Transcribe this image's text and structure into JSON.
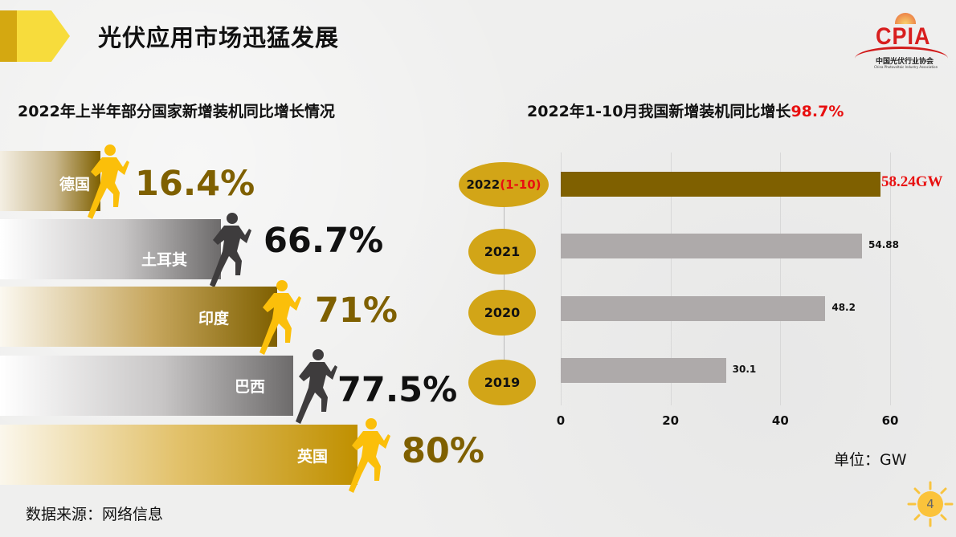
{
  "header": {
    "title": "光伏应用市场迅猛发展",
    "accent_dark": "#d4a811",
    "accent_light": "#f7dc3c"
  },
  "logo": {
    "text": "CPIA",
    "cn_name": "中国光伏行业协会",
    "en_name": "China Photovoltaic Industry Association"
  },
  "left_panel": {
    "title": "2022年上半年部分国家新增装机同比增长情况",
    "items": [
      {
        "country": "德国",
        "growth": "16.4%",
        "style": "gold"
      },
      {
        "country": "土耳其",
        "growth": "66.7%",
        "style": "gray"
      },
      {
        "country": "印度",
        "growth": "71%",
        "style": "gold"
      },
      {
        "country": "巴西",
        "growth": "77.5%",
        "style": "gray"
      },
      {
        "country": "英国",
        "growth": "80%",
        "style": "gold"
      }
    ],
    "source": "数据来源：网络信息"
  },
  "right_panel": {
    "title_prefix": "2022年1-10月我国新增装机同比增长",
    "title_highlight": "98.7%",
    "categories": [
      {
        "year": "2022",
        "suffix": "(1-10)",
        "value_label": "58.24GW"
      },
      {
        "year": "2021",
        "suffix": "",
        "value_label": "54.88"
      },
      {
        "year": "2020",
        "suffix": "",
        "value_label": "48.2"
      },
      {
        "year": "2019",
        "suffix": "",
        "value_label": "30.1"
      }
    ],
    "x_ticks": [
      "0",
      "20",
      "40",
      "60"
    ],
    "unit": "单位：GW"
  },
  "page_number": "4",
  "chart_data": [
    {
      "type": "bar",
      "orientation": "horizontal",
      "title": "2022年上半年部分国家新增装机同比增长情况",
      "categories": [
        "德国",
        "土耳其",
        "印度",
        "巴西",
        "英国"
      ],
      "values": [
        16.4,
        66.7,
        71,
        77.5,
        80
      ],
      "unit": "%",
      "xlabel": "",
      "ylabel": ""
    },
    {
      "type": "bar",
      "orientation": "horizontal",
      "title": "2022年1-10月我国新增装机同比增长98.7%",
      "categories": [
        "2022(1-10)",
        "2021",
        "2020",
        "2019"
      ],
      "values": [
        58.24,
        54.88,
        48.2,
        30.1
      ],
      "xlim": [
        0,
        60
      ],
      "x_ticks": [
        0,
        20,
        40,
        60
      ],
      "unit": "GW",
      "grid": true,
      "series_colors": [
        "#7f6000",
        "#aeaaaa",
        "#aeaaaa",
        "#aeaaaa"
      ]
    }
  ]
}
